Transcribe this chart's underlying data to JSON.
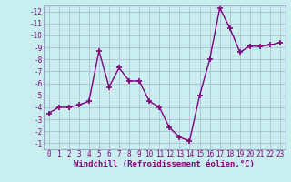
{
  "hours": [
    0,
    1,
    2,
    3,
    4,
    5,
    6,
    7,
    8,
    9,
    10,
    11,
    12,
    13,
    14,
    15,
    16,
    17,
    18,
    19,
    20,
    21,
    22,
    23
  ],
  "values": [
    -3.5,
    -4.0,
    -4.0,
    -4.2,
    -4.5,
    -8.7,
    -5.7,
    -7.3,
    -6.2,
    -6.2,
    -4.5,
    -4.0,
    -2.3,
    -1.5,
    -1.2,
    -5.0,
    -8.0,
    -12.3,
    -10.6,
    -8.6,
    -9.1,
    -9.1,
    -9.2,
    -9.4
  ],
  "line_color": "#800080",
  "marker": "+",
  "marker_size": 4,
  "bg_color": "#c8eef0",
  "grid_color": "#a0a8c8",
  "xlabel": "Windchill (Refroidissement éolien,°C)",
  "xlabel_fontsize": 6.5,
  "ylim": [
    -12.5,
    -0.5
  ],
  "xlim": [
    -0.5,
    23.5
  ],
  "yticks": [
    -1,
    -2,
    -3,
    -4,
    -5,
    -6,
    -7,
    -8,
    -9,
    -10,
    -11,
    -12
  ],
  "xticks": [
    0,
    1,
    2,
    3,
    4,
    5,
    6,
    7,
    8,
    9,
    10,
    11,
    12,
    13,
    14,
    15,
    16,
    17,
    18,
    19,
    20,
    21,
    22,
    23
  ],
  "tick_fontsize": 5.5,
  "line_width": 1.0,
  "spine_color": "#a0a8c8"
}
